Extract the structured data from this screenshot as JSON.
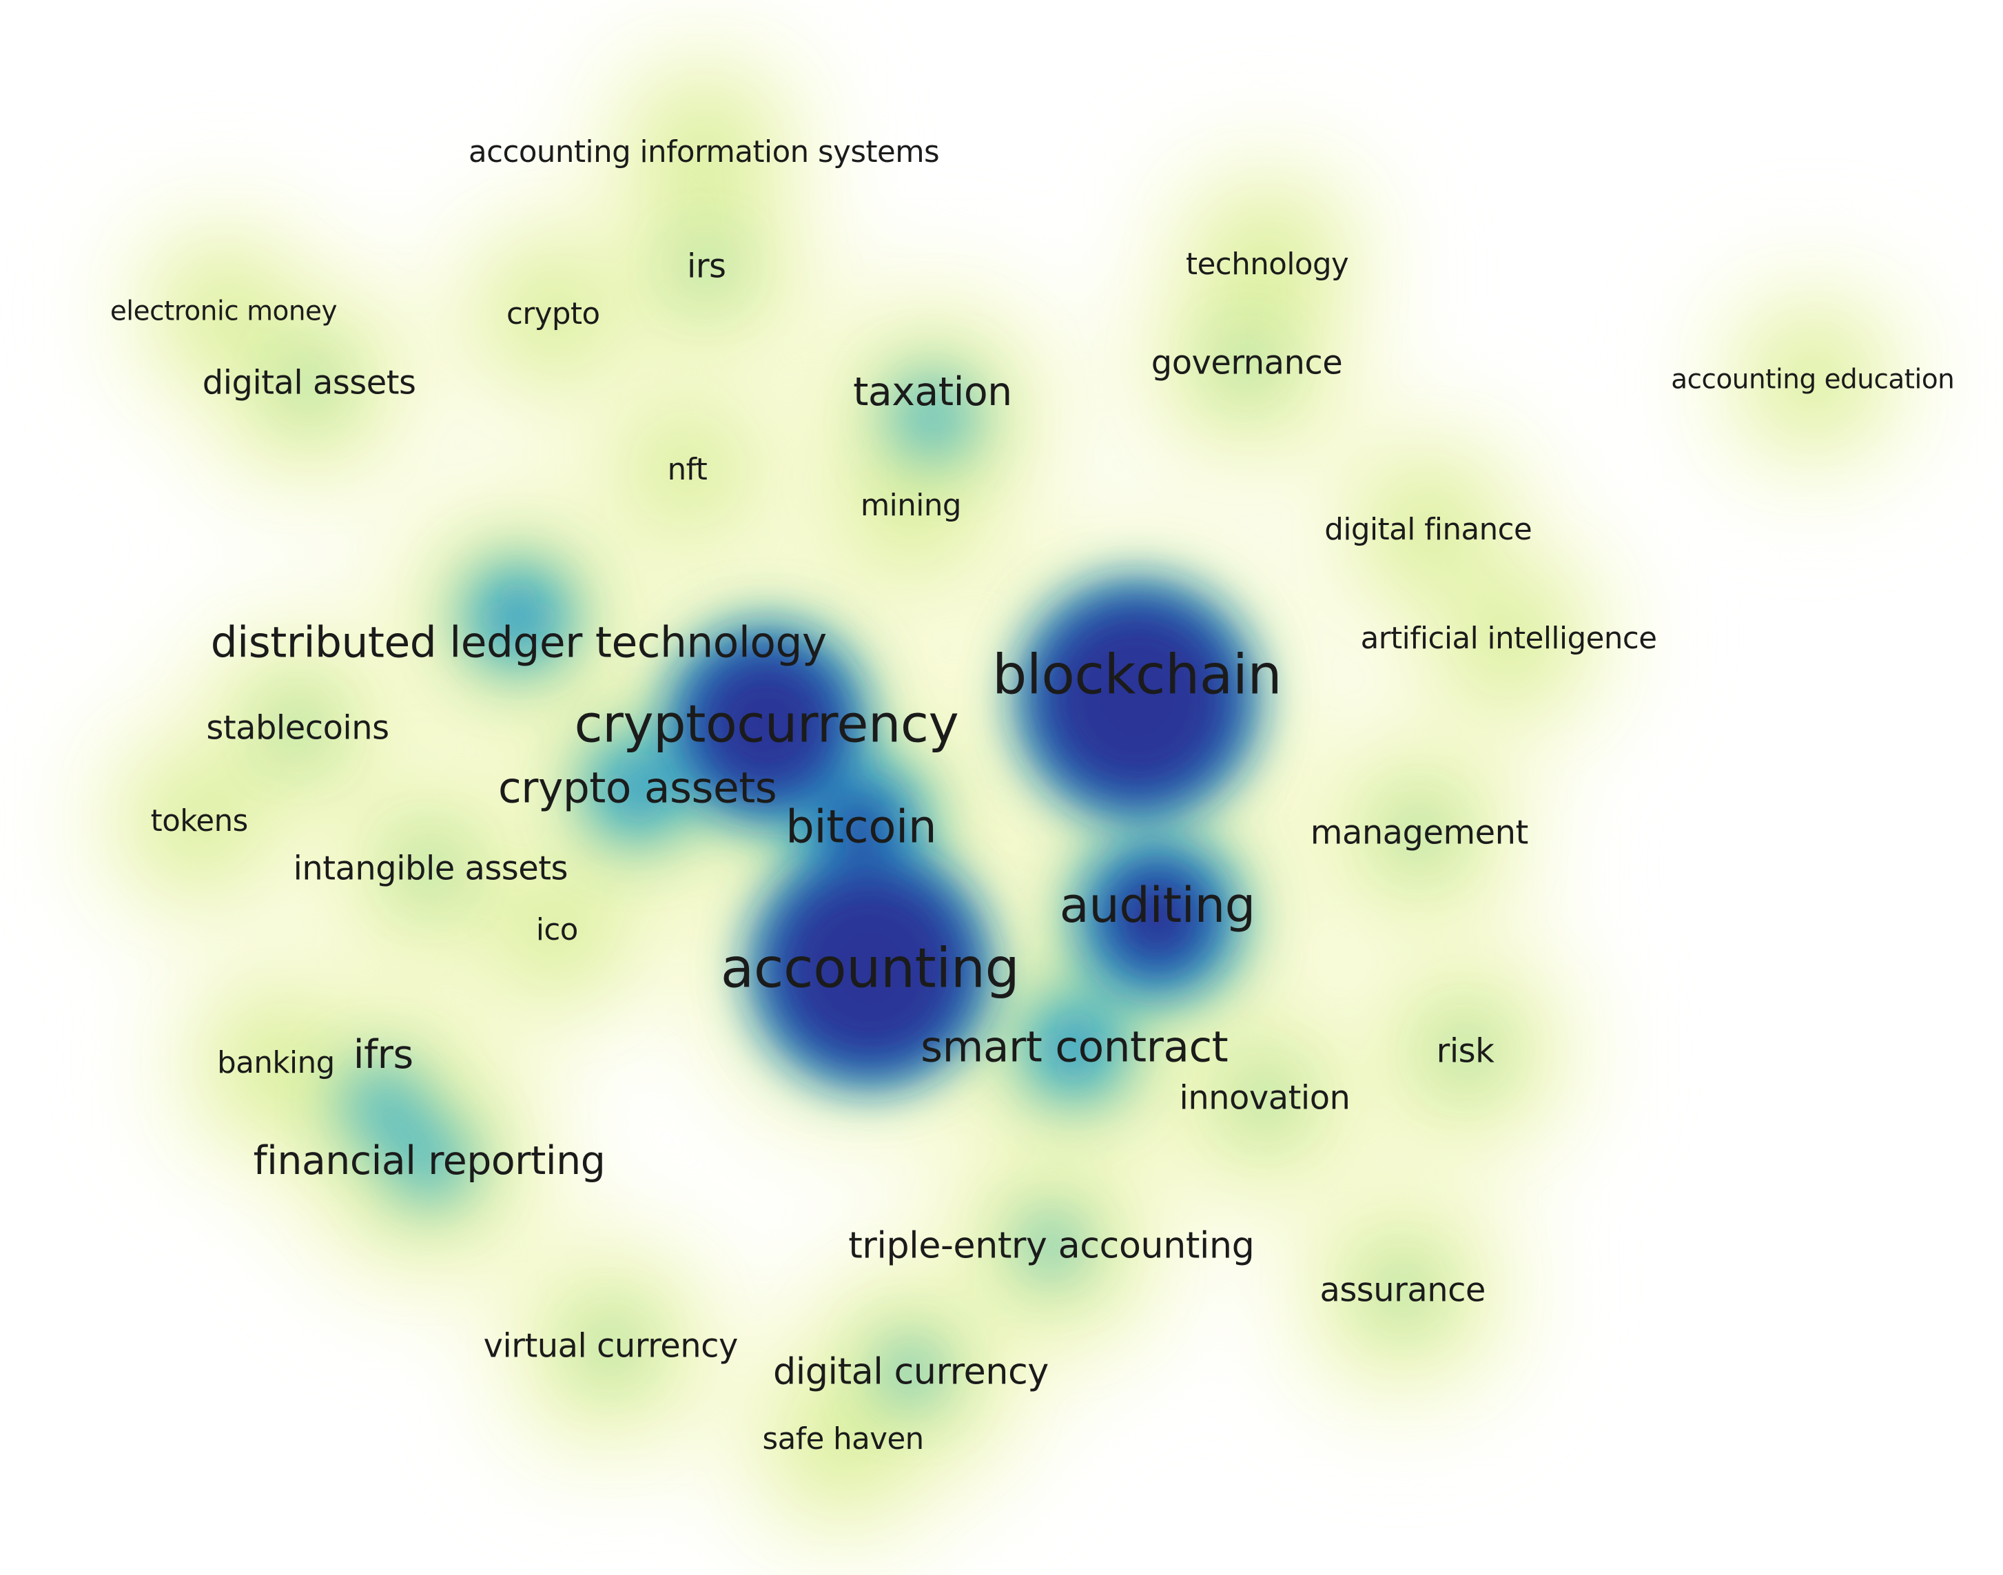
{
  "colors": {
    "background": "#ffffff",
    "low": "#f6f9cf",
    "mid_low": "#d8ee9c",
    "mid": "#4ab5c6",
    "mid_high": "#1f86c4",
    "high": "#2b3597",
    "label": "#1b1b1b"
  },
  "terms": [
    {
      "label": "accounting information systems",
      "weight": 2
    },
    {
      "label": "irs",
      "weight": 3
    },
    {
      "label": "technology",
      "weight": 2
    },
    {
      "label": "electronic money",
      "weight": 1
    },
    {
      "label": "crypto",
      "weight": 2
    },
    {
      "label": "digital assets",
      "weight": 3
    },
    {
      "label": "taxation",
      "weight": 5
    },
    {
      "label": "governance",
      "weight": 3
    },
    {
      "label": "accounting education",
      "weight": 1
    },
    {
      "label": "nft",
      "weight": 2
    },
    {
      "label": "mining",
      "weight": 2
    },
    {
      "label": "digital finance",
      "weight": 2
    },
    {
      "label": "distributed ledger technology",
      "weight": 6
    },
    {
      "label": "blockchain",
      "weight": 10
    },
    {
      "label": "artificial intelligence",
      "weight": 2
    },
    {
      "label": "cryptocurrency",
      "weight": 9
    },
    {
      "label": "stablecoins",
      "weight": 3
    },
    {
      "label": "crypto assets",
      "weight": 6
    },
    {
      "label": "bitcoin",
      "weight": 7
    },
    {
      "label": "tokens",
      "weight": 2
    },
    {
      "label": "management",
      "weight": 3
    },
    {
      "label": "intangible assets",
      "weight": 3
    },
    {
      "label": "auditing",
      "weight": 8
    },
    {
      "label": "ico",
      "weight": 2
    },
    {
      "label": "accounting",
      "weight": 10
    },
    {
      "label": "smart contract",
      "weight": 6
    },
    {
      "label": "risk",
      "weight": 3
    },
    {
      "label": "banking",
      "weight": 2
    },
    {
      "label": "ifrs",
      "weight": 5
    },
    {
      "label": "innovation",
      "weight": 3
    },
    {
      "label": "financial reporting",
      "weight": 5
    },
    {
      "label": "triple-entry accounting",
      "weight": 4
    },
    {
      "label": "assurance",
      "weight": 3
    },
    {
      "label": "virtual currency",
      "weight": 3
    },
    {
      "label": "digital currency",
      "weight": 4
    },
    {
      "label": "safe haven",
      "weight": 2
    }
  ]
}
